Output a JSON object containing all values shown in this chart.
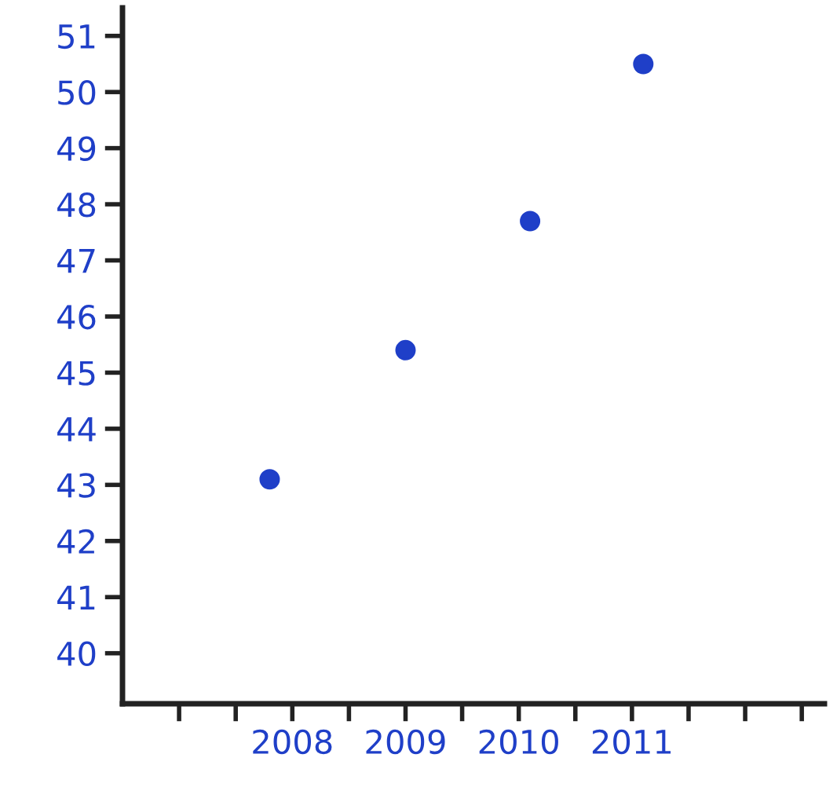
{
  "chart_data": {
    "type": "scatter",
    "x": [
      2007.8,
      2009.0,
      2010.1,
      2011.1
    ],
    "values": [
      43.1,
      45.4,
      47.7,
      50.5
    ],
    "color": "#1f3fc8",
    "marker": "circle",
    "xlim": [
      2006.5,
      2012.7
    ],
    "ylim": [
      39.1,
      51.5
    ],
    "xticks": [
      {
        "value": 2007,
        "label": null
      },
      {
        "value": 2007.5,
        "label": null
      },
      2008,
      {
        "value": 2008.5,
        "label": null
      },
      2009,
      {
        "value": 2009.5,
        "label": null
      },
      2010,
      {
        "value": 2010.5,
        "label": null
      },
      2011,
      {
        "value": 2011.5,
        "label": null
      },
      {
        "value": 2012,
        "label": null
      },
      {
        "value": 2012.5,
        "label": null
      }
    ],
    "yticks": [
      40,
      41,
      42,
      43,
      44,
      45,
      46,
      47,
      48,
      49,
      50,
      51
    ],
    "grid": false,
    "legend": false
  }
}
